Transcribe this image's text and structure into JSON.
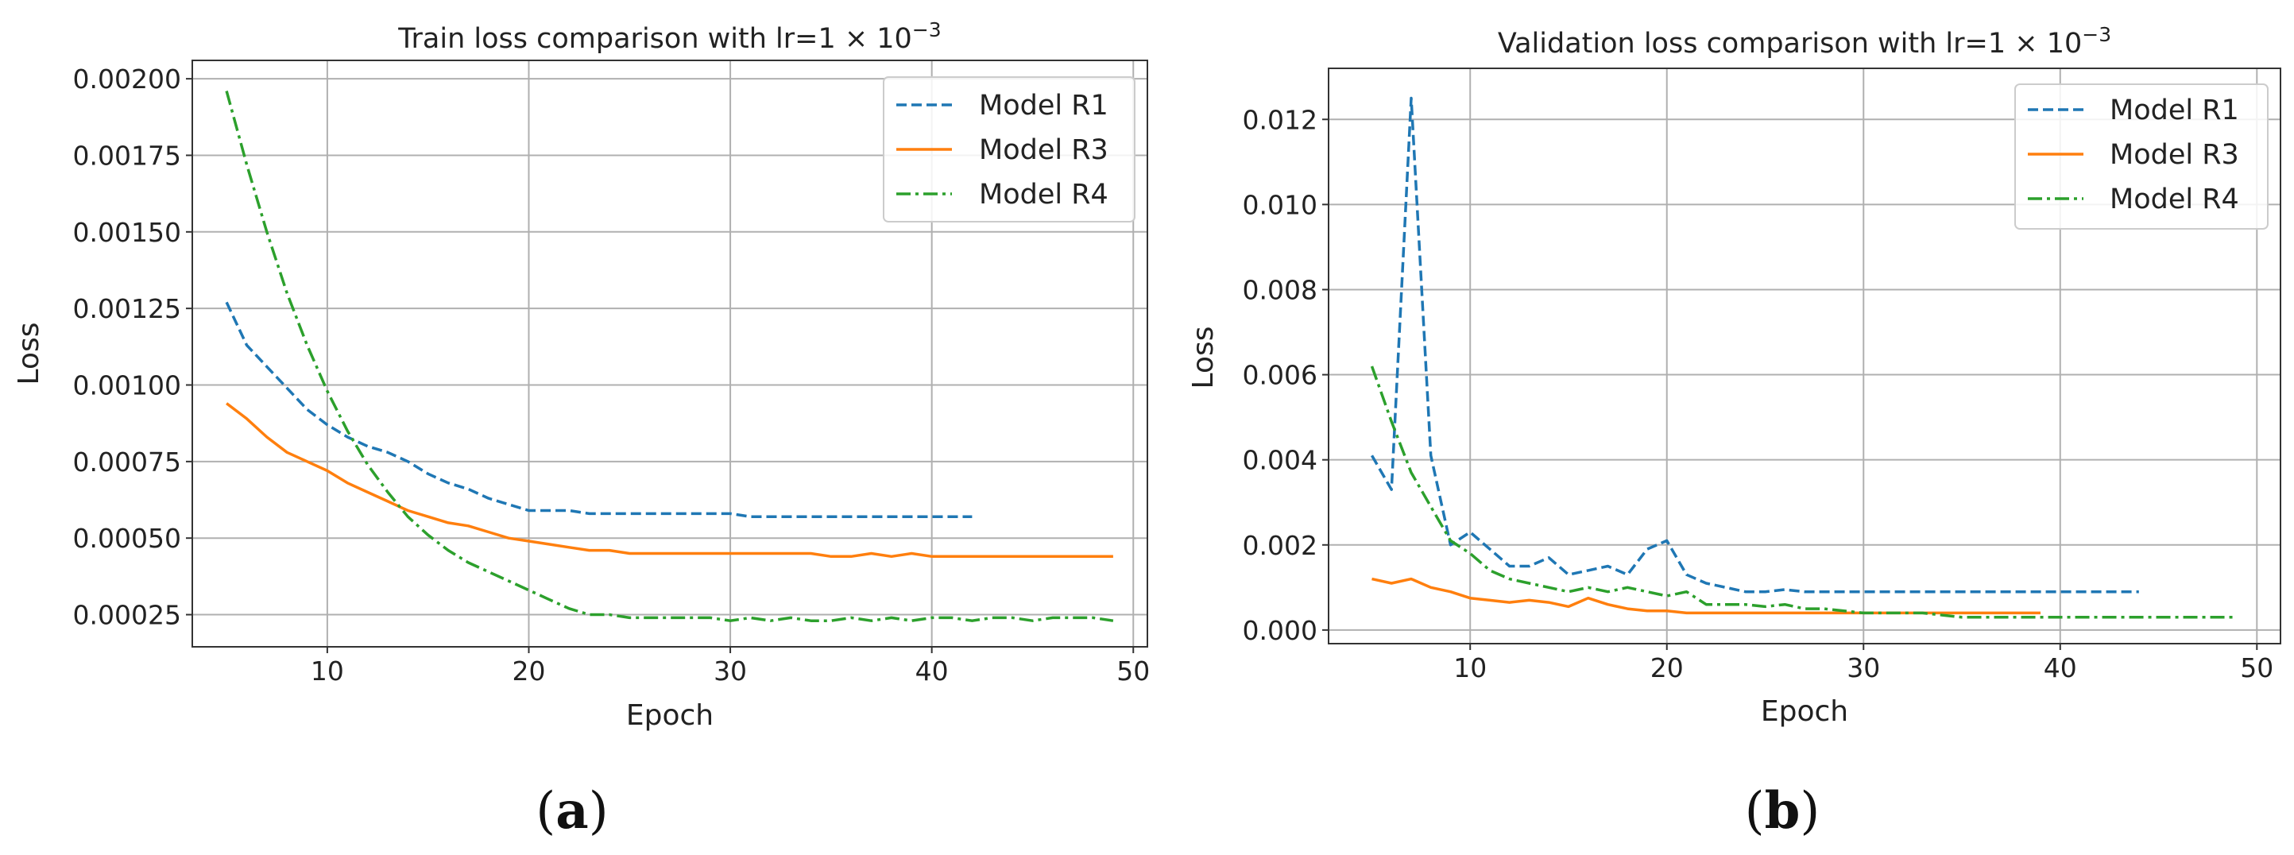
{
  "chart_data": [
    {
      "type": "line",
      "panel_label": "(a)",
      "panel_letter": "a",
      "title": "Train loss comparison with lr=1 × 10",
      "title_exponent": "−3",
      "xlabel": "Epoch",
      "ylabel": "Loss",
      "xlim": [
        3.3,
        50.7
      ],
      "ylim": [
        0.000145,
        0.00206
      ],
      "x_ticks": [
        10,
        20,
        30,
        40,
        50
      ],
      "x_tick_labels": [
        "10",
        "20",
        "30",
        "40",
        "50"
      ],
      "y_ticks": [
        0.00025,
        0.0005,
        0.00075,
        0.001,
        0.00125,
        0.0015,
        0.00175,
        0.002
      ],
      "y_tick_labels": [
        "0.00025",
        "0.00050",
        "0.00075",
        "0.00100",
        "0.00125",
        "0.00150",
        "0.00175",
        "0.00200"
      ],
      "grid": true,
      "legend_position": "upper-right",
      "series": [
        {
          "name": "Model R1",
          "color": "#1f77b4",
          "dash": "dashed",
          "x": [
            5,
            6,
            7,
            8,
            9,
            10,
            11,
            12,
            13,
            14,
            15,
            16,
            17,
            18,
            19,
            20,
            21,
            22,
            23,
            24,
            25,
            26,
            27,
            28,
            29,
            30,
            31,
            32,
            33,
            34,
            35,
            36,
            37,
            38,
            39,
            40,
            41,
            42
          ],
          "values": [
            0.00127,
            0.00113,
            0.00106,
            0.00099,
            0.00092,
            0.00087,
            0.00083,
            0.0008,
            0.00078,
            0.00075,
            0.00071,
            0.00068,
            0.00066,
            0.00063,
            0.00061,
            0.00059,
            0.00059,
            0.00059,
            0.00058,
            0.00058,
            0.00058,
            0.00058,
            0.00058,
            0.00058,
            0.00058,
            0.00058,
            0.00057,
            0.00057,
            0.00057,
            0.00057,
            0.00057,
            0.00057,
            0.00057,
            0.00057,
            0.00057,
            0.00057,
            0.00057,
            0.00057
          ]
        },
        {
          "name": "Model R3",
          "color": "#ff7f0e",
          "dash": "solid",
          "x": [
            5,
            6,
            7,
            8,
            9,
            10,
            11,
            12,
            13,
            14,
            15,
            16,
            17,
            18,
            19,
            20,
            21,
            22,
            23,
            24,
            25,
            26,
            27,
            28,
            29,
            30,
            31,
            32,
            33,
            34,
            35,
            36,
            37,
            38,
            39,
            40,
            41,
            42,
            43,
            44,
            45,
            46,
            47,
            48,
            49
          ],
          "values": [
            0.00094,
            0.00089,
            0.00083,
            0.00078,
            0.00075,
            0.00072,
            0.00068,
            0.00065,
            0.00062,
            0.00059,
            0.00057,
            0.00055,
            0.00054,
            0.00052,
            0.0005,
            0.00049,
            0.00048,
            0.00047,
            0.00046,
            0.00046,
            0.00045,
            0.00045,
            0.00045,
            0.00045,
            0.00045,
            0.00045,
            0.00045,
            0.00045,
            0.00045,
            0.00045,
            0.00044,
            0.00044,
            0.00045,
            0.00044,
            0.00045,
            0.00044,
            0.00044,
            0.00044,
            0.00044,
            0.00044,
            0.00044,
            0.00044,
            0.00044,
            0.00044,
            0.00044
          ]
        },
        {
          "name": "Model R4",
          "color": "#2ca02c",
          "dash": "dashdot",
          "x": [
            5,
            6,
            7,
            8,
            9,
            10,
            11,
            12,
            13,
            14,
            15,
            16,
            17,
            18,
            19,
            20,
            21,
            22,
            23,
            24,
            25,
            26,
            27,
            28,
            29,
            30,
            31,
            32,
            33,
            34,
            35,
            36,
            37,
            38,
            39,
            40,
            41,
            42,
            43,
            44,
            45,
            46,
            47,
            48,
            49
          ],
          "values": [
            0.00196,
            0.00172,
            0.0015,
            0.0013,
            0.00113,
            0.00098,
            0.00085,
            0.00074,
            0.00065,
            0.00057,
            0.00051,
            0.00046,
            0.00042,
            0.00039,
            0.00036,
            0.00033,
            0.0003,
            0.00027,
            0.00025,
            0.00025,
            0.00024,
            0.00024,
            0.00024,
            0.00024,
            0.00024,
            0.00023,
            0.00024,
            0.00023,
            0.00024,
            0.00023,
            0.00023,
            0.00024,
            0.00023,
            0.00024,
            0.00023,
            0.00024,
            0.00024,
            0.00023,
            0.00024,
            0.00024,
            0.00023,
            0.00024,
            0.00024,
            0.00024,
            0.00023
          ]
        }
      ]
    },
    {
      "type": "line",
      "panel_label": "(b)",
      "panel_letter": "b",
      "title": "Validation loss comparison with lr=1 × 10",
      "title_exponent": "−3",
      "xlabel": "Epoch",
      "ylabel": "Loss",
      "xlim": [
        2.8,
        51.2
      ],
      "ylim": [
        -0.00032,
        0.0132
      ],
      "x_ticks": [
        10,
        20,
        30,
        40,
        50
      ],
      "x_tick_labels": [
        "10",
        "20",
        "30",
        "40",
        "50"
      ],
      "y_ticks": [
        0.0,
        0.002,
        0.004,
        0.006,
        0.008,
        0.01,
        0.012
      ],
      "y_tick_labels": [
        "0.000",
        "0.002",
        "0.004",
        "0.006",
        "0.008",
        "0.010",
        "0.012"
      ],
      "grid": true,
      "legend_position": "upper-right",
      "series": [
        {
          "name": "Model R1",
          "color": "#1f77b4",
          "dash": "dashed",
          "x": [
            5,
            6,
            7,
            8,
            9,
            10,
            11,
            12,
            13,
            14,
            15,
            16,
            17,
            18,
            19,
            20,
            21,
            22,
            23,
            24,
            25,
            26,
            27,
            28,
            29,
            30,
            31,
            32,
            33,
            34,
            35,
            36,
            37,
            38,
            39,
            40,
            41,
            42,
            43,
            44
          ],
          "values": [
            0.0041,
            0.0033,
            0.0125,
            0.0041,
            0.002,
            0.0023,
            0.0019,
            0.0015,
            0.0015,
            0.0017,
            0.0013,
            0.0014,
            0.0015,
            0.0013,
            0.0019,
            0.0021,
            0.0013,
            0.0011,
            0.001,
            0.0009,
            0.0009,
            0.00095,
            0.0009,
            0.0009,
            0.0009,
            0.0009,
            0.0009,
            0.0009,
            0.0009,
            0.0009,
            0.0009,
            0.0009,
            0.0009,
            0.0009,
            0.0009,
            0.0009,
            0.0009,
            0.0009,
            0.0009,
            0.0009
          ]
        },
        {
          "name": "Model R3",
          "color": "#ff7f0e",
          "dash": "solid",
          "x": [
            5,
            6,
            7,
            8,
            9,
            10,
            11,
            12,
            13,
            14,
            15,
            16,
            17,
            18,
            19,
            20,
            21,
            22,
            23,
            24,
            25,
            26,
            27,
            28,
            29,
            30,
            31,
            32,
            33,
            34,
            35,
            36,
            37,
            38,
            39
          ],
          "values": [
            0.0012,
            0.0011,
            0.0012,
            0.001,
            0.0009,
            0.00075,
            0.0007,
            0.00065,
            0.0007,
            0.00065,
            0.00055,
            0.00075,
            0.0006,
            0.0005,
            0.00045,
            0.00045,
            0.0004,
            0.0004,
            0.0004,
            0.0004,
            0.0004,
            0.0004,
            0.0004,
            0.0004,
            0.0004,
            0.0004,
            0.0004,
            0.0004,
            0.0004,
            0.0004,
            0.0004,
            0.0004,
            0.0004,
            0.0004,
            0.0004
          ]
        },
        {
          "name": "Model R4",
          "color": "#2ca02c",
          "dash": "dashdot",
          "x": [
            5,
            6,
            7,
            8,
            9,
            10,
            11,
            12,
            13,
            14,
            15,
            16,
            17,
            18,
            19,
            20,
            21,
            22,
            23,
            24,
            25,
            26,
            27,
            28,
            29,
            30,
            31,
            32,
            33,
            34,
            35,
            36,
            37,
            38,
            39,
            40,
            41,
            42,
            43,
            44,
            45,
            46,
            47,
            48,
            49
          ],
          "values": [
            0.0062,
            0.0049,
            0.0037,
            0.0029,
            0.0021,
            0.0018,
            0.0014,
            0.0012,
            0.0011,
            0.001,
            0.0009,
            0.001,
            0.0009,
            0.001,
            0.0009,
            0.0008,
            0.0009,
            0.0006,
            0.0006,
            0.0006,
            0.00055,
            0.0006,
            0.0005,
            0.0005,
            0.00045,
            0.0004,
            0.0004,
            0.0004,
            0.0004,
            0.00035,
            0.0003,
            0.0003,
            0.0003,
            0.0003,
            0.0003,
            0.0003,
            0.0003,
            0.0003,
            0.0003,
            0.0003,
            0.0003,
            0.0003,
            0.0003,
            0.0003,
            0.0003
          ]
        }
      ]
    }
  ]
}
